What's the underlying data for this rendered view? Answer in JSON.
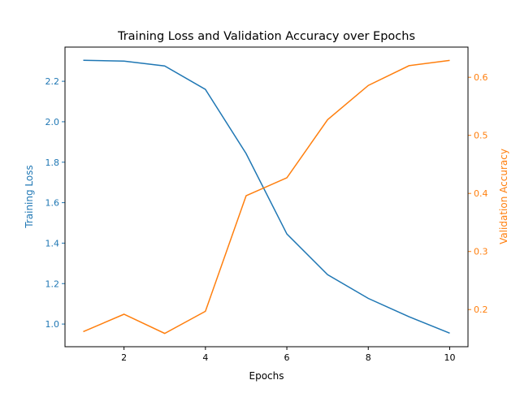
{
  "chart_data": {
    "type": "line",
    "title": "Training Loss and Validation Accuracy over Epochs",
    "xlabel": "Epochs",
    "ylabel_left": "Training Loss",
    "ylabel_right": "Validation Accuracy",
    "x": [
      1,
      2,
      3,
      4,
      5,
      6,
      7,
      8,
      9,
      10
    ],
    "xlim": [
      0.55,
      10.45
    ],
    "ylim_left": [
      0.888,
      2.369
    ],
    "ylim_right": [
      0.136,
      0.652
    ],
    "xticks": [
      2,
      4,
      6,
      8,
      10
    ],
    "yticks_left": [
      "1.0",
      "1.2",
      "1.4",
      "1.6",
      "1.8",
      "2.0",
      "2.2"
    ],
    "yticks_right": [
      "0.2",
      "0.3",
      "0.4",
      "0.5",
      "0.6"
    ],
    "grid": false,
    "series": [
      {
        "name": "Training Loss",
        "axis": "left",
        "color": "#1f77b4",
        "values": [
          2.304,
          2.3,
          2.276,
          2.16,
          1.843,
          1.445,
          1.244,
          1.127,
          1.036,
          0.955
        ]
      },
      {
        "name": "Validation Accuracy",
        "axis": "right",
        "color": "#ff7f0e",
        "values": [
          0.162,
          0.192,
          0.159,
          0.197,
          0.396,
          0.427,
          0.527,
          0.586,
          0.62,
          0.629
        ]
      }
    ]
  }
}
